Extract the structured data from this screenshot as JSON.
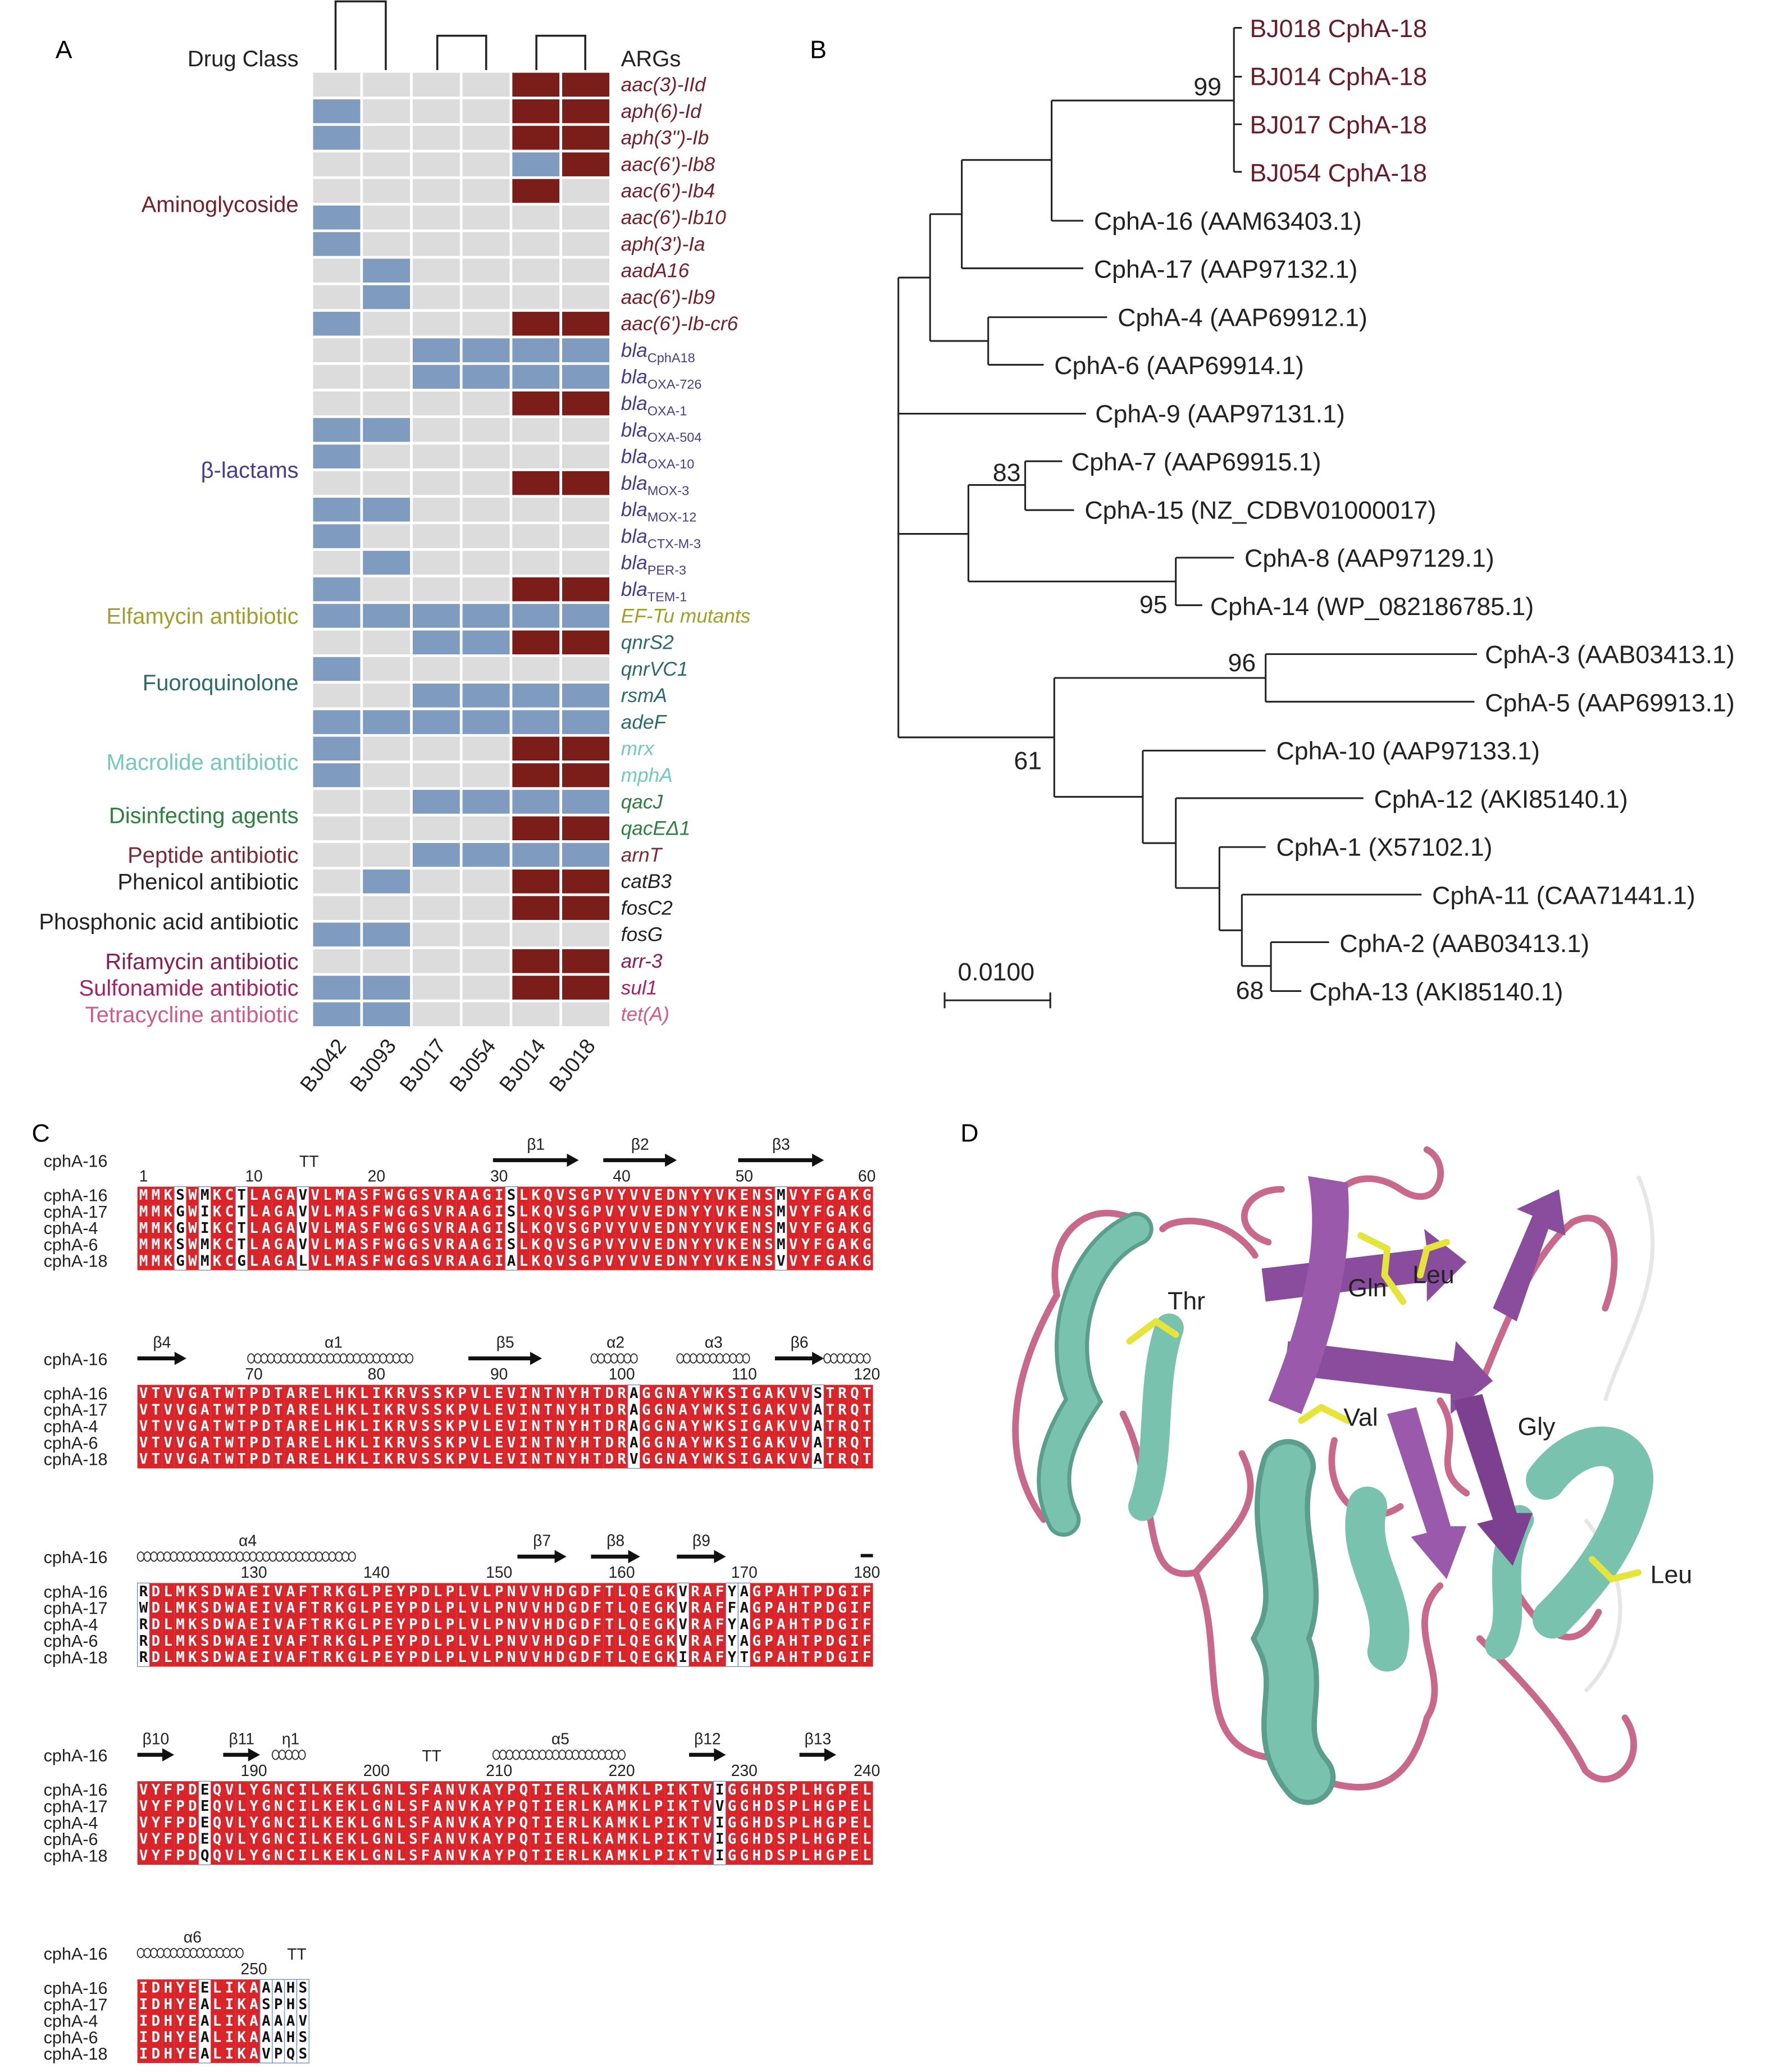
{
  "panel_labels": [
    "A",
    "B",
    "C",
    "D"
  ],
  "heatmap": {
    "header_left": "Drug Class",
    "header_right": "ARGs",
    "samples": [
      "BJ042",
      "BJ093",
      "BJ017",
      "BJ054",
      "BJ014",
      "BJ018"
    ],
    "state_colors": [
      "#dcdcdc",
      "#7f9bbf",
      "#7b1e1a"
    ],
    "classes": [
      {
        "name": "Aminoglycoside",
        "color": "#74202c",
        "genes": [
          {
            "name": "aac(3)-IId",
            "states": [
              0,
              0,
              0,
              0,
              2,
              2
            ]
          },
          {
            "name": "aph(6)-Id",
            "states": [
              1,
              0,
              0,
              0,
              2,
              2
            ]
          },
          {
            "name": "aph(3'')-Ib",
            "states": [
              1,
              0,
              0,
              0,
              2,
              2
            ]
          },
          {
            "name": "aac(6')-Ib8",
            "states": [
              0,
              0,
              0,
              0,
              1,
              2
            ]
          },
          {
            "name": "aac(6')-Ib4",
            "states": [
              0,
              0,
              0,
              0,
              2,
              0
            ]
          },
          {
            "name": "aac(6')-Ib10",
            "states": [
              1,
              0,
              0,
              0,
              0,
              0
            ]
          },
          {
            "name": "aph(3')-Ia",
            "states": [
              1,
              0,
              0,
              0,
              0,
              0
            ]
          },
          {
            "name": "aadA16",
            "states": [
              0,
              1,
              0,
              0,
              0,
              0
            ]
          },
          {
            "name": "aac(6')-Ib9",
            "states": [
              0,
              1,
              0,
              0,
              0,
              0
            ]
          },
          {
            "name": "aac(6')-Ib-cr6",
            "states": [
              1,
              0,
              0,
              0,
              2,
              2
            ]
          }
        ]
      },
      {
        "name": "β-lactams",
        "color": "#4a3c8c",
        "genes": [
          {
            "name": "bla",
            "sub": "CphA18",
            "states": [
              0,
              0,
              1,
              1,
              1,
              1
            ]
          },
          {
            "name": "bla",
            "sub": "OXA-726",
            "states": [
              0,
              0,
              1,
              1,
              1,
              1
            ]
          },
          {
            "name": "bla",
            "sub": "OXA-1",
            "states": [
              0,
              0,
              0,
              0,
              2,
              2
            ]
          },
          {
            "name": "bla",
            "sub": "OXA-504",
            "states": [
              1,
              1,
              0,
              0,
              0,
              0
            ]
          },
          {
            "name": "bla",
            "sub": "OXA-10",
            "states": [
              1,
              0,
              0,
              0,
              0,
              0
            ]
          },
          {
            "name": "bla",
            "sub": "MOX-3",
            "states": [
              0,
              0,
              0,
              0,
              2,
              2
            ]
          },
          {
            "name": "bla",
            "sub": "MOX-12",
            "states": [
              1,
              1,
              0,
              0,
              0,
              0
            ]
          },
          {
            "name": "bla",
            "sub": "CTX-M-3",
            "states": [
              1,
              0,
              0,
              0,
              0,
              0
            ]
          },
          {
            "name": "bla",
            "sub": "PER-3",
            "states": [
              0,
              1,
              0,
              0,
              0,
              0
            ]
          },
          {
            "name": "bla",
            "sub": "TEM-1",
            "states": [
              1,
              0,
              0,
              0,
              2,
              2
            ]
          }
        ]
      },
      {
        "name": "Elfamycin antibiotic",
        "color": "#9ea02a",
        "genes": [
          {
            "name": "EF-Tu mutants",
            "states": [
              1,
              1,
              1,
              1,
              1,
              1
            ]
          }
        ]
      },
      {
        "name": "Fuoroquinolone",
        "color": "#2d6b6b",
        "genes": [
          {
            "name": "qnrS2",
            "states": [
              0,
              0,
              1,
              1,
              2,
              2
            ]
          },
          {
            "name": "qnrVC1",
            "states": [
              1,
              0,
              0,
              0,
              0,
              0
            ]
          },
          {
            "name": "rsmA",
            "states": [
              0,
              0,
              1,
              1,
              1,
              1
            ]
          },
          {
            "name": "adeF",
            "states": [
              1,
              1,
              1,
              1,
              1,
              1
            ]
          }
        ]
      },
      {
        "name": "Macrolide antibiotic",
        "color": "#74c9b9",
        "genes": [
          {
            "name": "mrx",
            "states": [
              1,
              0,
              0,
              0,
              2,
              2
            ]
          },
          {
            "name": "mphA",
            "states": [
              1,
              0,
              0,
              0,
              2,
              2
            ]
          }
        ]
      },
      {
        "name": "Disinfecting agents",
        "color": "#2e8040",
        "genes": [
          {
            "name": "qacJ",
            "states": [
              0,
              0,
              1,
              1,
              1,
              1
            ]
          },
          {
            "name": "qacEΔ1",
            "states": [
              0,
              0,
              0,
              0,
              2,
              2
            ]
          }
        ]
      },
      {
        "name": "Peptide antibiotic",
        "color": "#7a2a3a",
        "genes": [
          {
            "name": "arnT",
            "states": [
              0,
              0,
              1,
              1,
              1,
              1
            ]
          }
        ]
      },
      {
        "name": "Phenicol antibiotic",
        "color": "#222222",
        "genes": [
          {
            "name": "catB3",
            "states": [
              0,
              1,
              0,
              0,
              2,
              2
            ]
          }
        ]
      },
      {
        "name": "Phosphonic acid antibiotic",
        "color": "#222222",
        "genes": [
          {
            "name": "fosC2",
            "states": [
              0,
              0,
              0,
              0,
              2,
              2
            ]
          },
          {
            "name": "fosG",
            "states": [
              1,
              1,
              0,
              0,
              0,
              0
            ]
          }
        ]
      },
      {
        "name": "Rifamycin antibiotic",
        "color": "#8b1e4e",
        "genes": [
          {
            "name": "arr-3",
            "states": [
              0,
              0,
              0,
              0,
              2,
              2
            ]
          }
        ]
      },
      {
        "name": "Sulfonamide antibiotic",
        "color": "#a8225e",
        "genes": [
          {
            "name": "sul1",
            "states": [
              1,
              1,
              0,
              0,
              2,
              2
            ]
          }
        ]
      },
      {
        "name": "Tetracycline antibiotic",
        "color": "#d05a88",
        "genes": [
          {
            "name": "tet(A)",
            "states": [
              1,
              1,
              0,
              0,
              0,
              0
            ]
          }
        ]
      }
    ]
  },
  "tree": {
    "leaves": [
      {
        "label": "BJ018 CphA-18",
        "color": "#6b1a2a"
      },
      {
        "label": "BJ014 CphA-18",
        "color": "#6b1a2a"
      },
      {
        "label": "BJ017 CphA-18",
        "color": "#6b1a2a"
      },
      {
        "label": "BJ054 CphA-18",
        "color": "#6b1a2a"
      },
      {
        "label": "CphA-16 (AAM63403.1)",
        "color": "#222222"
      },
      {
        "label": "CphA-17 (AAP97132.1)",
        "color": "#222222"
      },
      {
        "label": "CphA-4 (AAP69912.1)",
        "color": "#222222"
      },
      {
        "label": "CphA-6 (AAP69914.1)",
        "color": "#222222"
      },
      {
        "label": "CphA-9 (AAP97131.1)",
        "color": "#222222"
      },
      {
        "label": "CphA-7 (AAP69915.1)",
        "color": "#222222"
      },
      {
        "label": "CphA-15 (NZ_CDBV01000017)",
        "color": "#222222"
      },
      {
        "label": "CphA-8 (AAP97129.1)",
        "color": "#222222"
      },
      {
        "label": "CphA-14 (WP_082186785.1)",
        "color": "#222222"
      },
      {
        "label": "CphA-3 (AAB03413.1)",
        "color": "#222222"
      },
      {
        "label": "CphA-5 (AAP69913.1)",
        "color": "#222222"
      },
      {
        "label": "CphA-10 (AAP97133.1)",
        "color": "#222222"
      },
      {
        "label": "CphA-12 (AKI85140.1)",
        "color": "#222222"
      },
      {
        "label": "CphA-1 (X57102.1)",
        "color": "#222222"
      },
      {
        "label": "CphA-11 (CAA71441.1)",
        "color": "#222222"
      },
      {
        "label": "CphA-2 (AAB03413.1)",
        "color": "#222222"
      },
      {
        "label": "CphA-13 (AKI85140.1)",
        "color": "#222222"
      }
    ],
    "bootstrap": [
      99,
      83,
      95,
      96,
      61,
      68
    ],
    "scale_label": "0.0100"
  },
  "alignment": {
    "header": "cphA-16",
    "names": [
      "cphA-16",
      "cphA-17",
      "cphA-4",
      "cphA-6",
      "cphA-18"
    ],
    "conserved_color": "#d9252a",
    "blocks": [
      {
        "ticks": [
          1,
          10,
          20,
          30,
          40,
          50,
          60
        ],
        "ss": [
          {
            "label": "TT",
            "kind": "turn",
            "start": 14,
            "end": 15
          },
          {
            "label": "β1",
            "kind": "strand",
            "start": 30,
            "end": 36
          },
          {
            "label": "β2",
            "kind": "strand",
            "start": 39,
            "end": 44
          },
          {
            "label": "β3",
            "kind": "strand",
            "start": 50,
            "end": 56
          }
        ],
        "seqs": [
          "MMKSWMKCTLAGAVVLMASFWGGSVRAAGISLKQVSGPVYVVEDNYYVKENSMVYFGAKG",
          "MMKGWIKCTLAGAVVLMASFWGGSVRAAGISLKQVSGPVYVVEDNYYVKENSMVYFGAKG",
          "MMKGWIKCTLAGAVVLMASFWGGSVRAAGISLKQVSGPVYVVEDNYYVKENSMVYFGAKG",
          "MMKSWMKCTLAGAVVLMASFWGGSVRAAGISLKQVSGPVYVVEDNYYVKENSMVYFGAKG",
          "MMKGWMKCGLAGALVLMASFWGGSVRAAGIALKQVSGPVYVVEDNYYVKENSVVYFGAKG"
        ]
      },
      {
        "ticks": [
          70,
          80,
          90,
          100,
          110,
          120
        ],
        "ss": [
          {
            "label": "β4",
            "kind": "strand",
            "start": 61,
            "end": 64
          },
          {
            "label": "α1",
            "kind": "helix",
            "start": 70,
            "end": 83
          },
          {
            "label": "β5",
            "kind": "strand",
            "start": 88,
            "end": 93
          },
          {
            "label": "α2",
            "kind": "helix",
            "start": 98,
            "end": 101
          },
          {
            "label": "α3",
            "kind": "helix",
            "start": 105,
            "end": 110
          },
          {
            "label": "β6",
            "kind": "strand",
            "start": 113,
            "end": 116
          },
          {
            "kind": "helix",
            "start": 117,
            "end": 120
          }
        ],
        "seqs": [
          "VTVVGATWTPDTARELHKLIKRVSSKPVLEVINTNYHTDRAGGNAYWKSIGAKVVSTRQT",
          "VTVVGATWTPDTARELHKLIKRVSSKPVLEVINTNYHTDRAGGNAYWKSIGAKVVATRQT",
          "VTVVGATWTPDTARELHKLIKRVSSKPVLEVINTNYHTDRAGGNAYWKSIGAKVVATRQT",
          "VTVVGATWTPDTARELHKLIKRVSSKPVLEVINTNYHTDRAGGNAYWKSIGAKVVATRQT",
          "VTVVGATWTPDTARELHKLIKRVSSKPVLEVINTNYHTDRVGGNAYWKSIGAKVVATRQT"
        ]
      },
      {
        "ticks": [
          130,
          140,
          150,
          160,
          170,
          180
        ],
        "ss": [
          {
            "label": "α4",
            "kind": "helix",
            "start": 121,
            "end": 138
          },
          {
            "label": "β7",
            "kind": "strand",
            "start": 152,
            "end": 155
          },
          {
            "label": "β8",
            "kind": "strand",
            "start": 158,
            "end": 161
          },
          {
            "label": "β9",
            "kind": "strand",
            "start": 165,
            "end": 168
          },
          {
            "kind": "bridge",
            "start": 180,
            "end": 180
          }
        ],
        "seqs": [
          "RDLMKSDWAEIVAFTRKGLPEYPDLPLVLPNVVHDGDFTLQEGKVRAFYAGPAHTPDGIF",
          "WDLMKSDWAEIVAFTRKGLPEYPDLPLVLPNVVHDGDFTLQEGKVRAFFAGPAHTPDGIF",
          "RDLMKSDWAEIVAFTRKGLPEYPDLPLVLPNVVHDGDFTLQEGKVRAFYAGPAHTPDGIF",
          "RDLMKSDWAEIVAFTRKGLPEYPDLPLVLPNVVHDGDFTLQEGKVRAFYAGPAHTPDGIF",
          "RDLMKSDWAEIVAFTRKGLPEYPDLPLVLPNVVHDGDFTLQEGKIRAFYTGPAHTPDGIF"
        ]
      },
      {
        "ticks": [
          190,
          200,
          210,
          220,
          230,
          240
        ],
        "ss": [
          {
            "label": "β10",
            "kind": "strand",
            "start": 181,
            "end": 183
          },
          {
            "label": "β11",
            "kind": "strand",
            "start": 188,
            "end": 190
          },
          {
            "label": "η1",
            "kind": "helix",
            "start": 192,
            "end": 194
          },
          {
            "label": "TT",
            "kind": "turn",
            "start": 204,
            "end": 205
          },
          {
            "label": "α5",
            "kind": "helix",
            "start": 210,
            "end": 220
          },
          {
            "label": "β12",
            "kind": "strand",
            "start": 226,
            "end": 228
          },
          {
            "label": "β13",
            "kind": "strand",
            "start": 235,
            "end": 237
          }
        ],
        "seqs": [
          "VYFPDEQVLYGNCILKEKLGNLSFANVKAYPQTIERLKAMKLPIKTVIGGHDSPLHGPEL",
          "VYFPDEQVLYGNCILKEKLGNLSFANVKAYPQTIERLKAMKLPIKTVVGGHDSPLHGPEL",
          "VYFPDEQVLYGNCILKEKLGNLSFANVKAYPQTIERLKAMKLPIKTVIGGHDSPLHGPEL",
          "VYFPDEQVLYGNCILKEKLGNLSFANVKAYPQTIERLKAMKLPIKTVIGGHDSPLHGPEL",
          "VYFPDQQVLYGNCILKEKLGNLSFANVKAYPQTIERLKAMKLPIKTVIGGHDSPLHGPEL"
        ]
      },
      {
        "ticks": [
          250
        ],
        "ss": [
          {
            "label": "α6",
            "kind": "helix",
            "start": 241,
            "end": 249
          },
          {
            "label": "TT",
            "kind": "turn",
            "start": 253,
            "end": 254
          }
        ],
        "seqs": [
          "IDHYEELIKAAAHS",
          "IDHYEALIKASPHS",
          "IDHYEALIKAAAAV",
          "IDHYEALIKAAAHS",
          "IDHYEALIKAVPQS"
        ]
      }
    ]
  },
  "structure": {
    "residue_labels": [
      "Thr",
      "Gln",
      "Leu",
      "Val",
      "Gly",
      "Leu"
    ]
  }
}
